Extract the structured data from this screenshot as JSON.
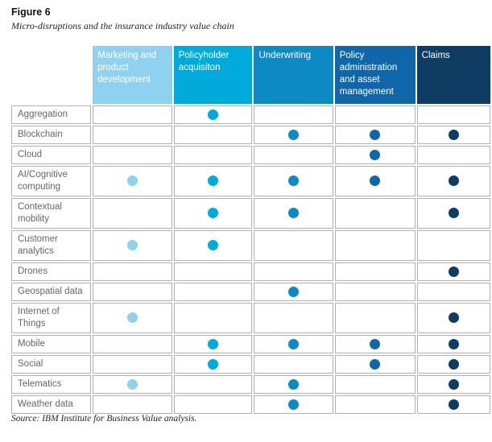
{
  "figure": {
    "label": "Figure 6",
    "subtitle": "Micro-disruptions and the insurance industry value chain",
    "source": "Source: IBM Institute for Business Value analysis."
  },
  "chart_data": {
    "type": "table",
    "title": "Micro-disruptions and the insurance industry value chain",
    "legend_note": "dot = technology creates micro-disruption in that value-chain stage; dot color matches column color",
    "columns": [
      {
        "label": "Marketing and product development",
        "color": "#8fd2f0"
      },
      {
        "label": "Policyholder acquisiton",
        "color": "#00abdc"
      },
      {
        "label": "Underwriting",
        "color": "#0d8ac4"
      },
      {
        "label": "Policy administration and asset management",
        "color": "#0f67a9"
      },
      {
        "label": "Claims",
        "color": "#0e3c63"
      }
    ],
    "rows": [
      {
        "label": "Aggregation",
        "dots": [
          0,
          1,
          0,
          0,
          0
        ]
      },
      {
        "label": "Blockchain",
        "dots": [
          0,
          0,
          1,
          1,
          1
        ]
      },
      {
        "label": "Cloud",
        "dots": [
          0,
          0,
          0,
          1,
          0
        ]
      },
      {
        "label": "AI/Cognitive computing",
        "dots": [
          1,
          1,
          1,
          1,
          1
        ]
      },
      {
        "label": "Contextual mobility",
        "dots": [
          0,
          1,
          1,
          0,
          1
        ]
      },
      {
        "label": "Customer analytics",
        "dots": [
          1,
          1,
          0,
          0,
          0
        ]
      },
      {
        "label": "Drones",
        "dots": [
          0,
          0,
          0,
          0,
          1
        ]
      },
      {
        "label": "Geospatial data",
        "dots": [
          0,
          0,
          1,
          0,
          0
        ]
      },
      {
        "label": "Internet of Things",
        "dots": [
          1,
          0,
          0,
          0,
          1
        ]
      },
      {
        "label": "Mobile",
        "dots": [
          0,
          1,
          1,
          1,
          1
        ]
      },
      {
        "label": "Social",
        "dots": [
          0,
          1,
          0,
          1,
          1
        ]
      },
      {
        "label": "Telematics",
        "dots": [
          1,
          0,
          1,
          0,
          1
        ]
      },
      {
        "label": "Weather data",
        "dots": [
          0,
          0,
          1,
          0,
          1
        ]
      }
    ]
  }
}
